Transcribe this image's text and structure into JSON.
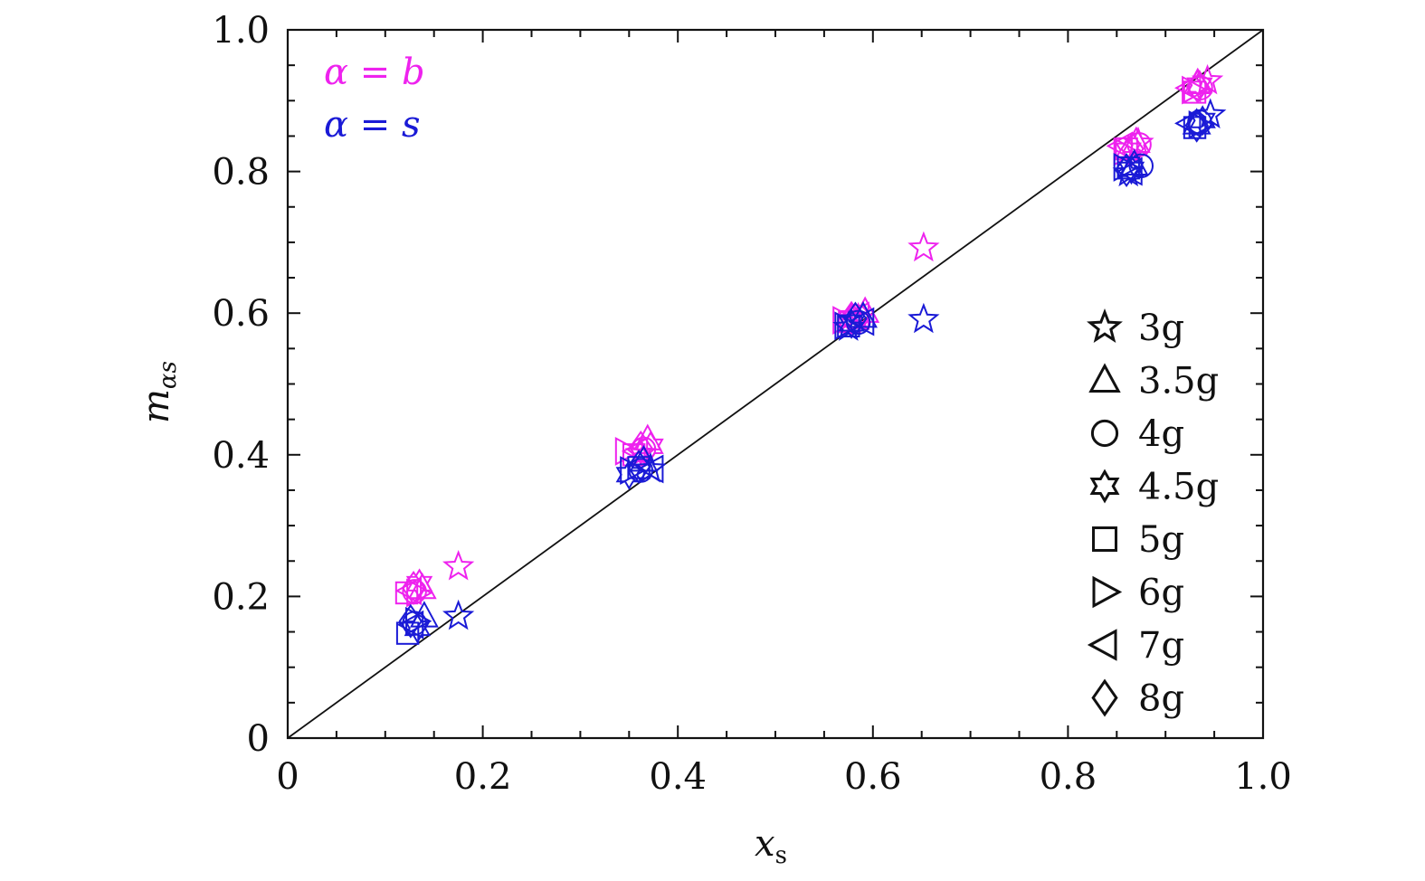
{
  "chart_data": {
    "type": "scatter",
    "xlabel": "x",
    "xlabel_sub": "s",
    "ylabel": "m",
    "ylabel_sub": "αs",
    "xlim": [
      0,
      1.0
    ],
    "ylim": [
      0,
      1.0
    ],
    "x_ticks": [
      "0",
      "0.2",
      "0.4",
      "0.6",
      "0.8",
      "1.0"
    ],
    "y_ticks": [
      "0",
      "0.2",
      "0.4",
      "0.6",
      "0.8",
      "1.0"
    ],
    "reference_line": {
      "from": [
        0,
        0
      ],
      "to": [
        1.0,
        1.0
      ]
    },
    "group_labels": [
      {
        "text": "α = b",
        "color": "#ee22ee"
      },
      {
        "text": "α = s",
        "color": "#1a1ad6"
      }
    ],
    "marker_legend": [
      {
        "marker": "star5",
        "label": "3g"
      },
      {
        "marker": "triangle-up",
        "label": "3.5g"
      },
      {
        "marker": "circle",
        "label": "4g"
      },
      {
        "marker": "star6",
        "label": "4.5g"
      },
      {
        "marker": "square",
        "label": "5g"
      },
      {
        "marker": "triangle-right",
        "label": "6g"
      },
      {
        "marker": "triangle-left",
        "label": "7g"
      },
      {
        "marker": "diamond",
        "label": "8g"
      }
    ],
    "legend_position": "lower-right",
    "colors": {
      "b": "#ee22ee",
      "s": "#1a1ad6"
    },
    "series": [
      {
        "marker": "star5",
        "group": "b",
        "points": [
          [
            0.175,
            0.242
          ],
          [
            0.362,
            0.402
          ],
          [
            0.585,
            0.592
          ],
          [
            0.652,
            0.692
          ],
          [
            0.872,
            0.84
          ],
          [
            0.943,
            0.928
          ]
        ]
      },
      {
        "marker": "triangle-up",
        "group": "b",
        "points": [
          [
            0.138,
            0.212
          ],
          [
            0.369,
            0.422
          ],
          [
            0.592,
            0.602
          ],
          [
            0.87,
            0.842
          ],
          [
            0.933,
            0.925
          ]
        ]
      },
      {
        "marker": "circle",
        "group": "b",
        "points": [
          [
            0.13,
            0.207
          ],
          [
            0.365,
            0.408
          ],
          [
            0.583,
            0.595
          ],
          [
            0.873,
            0.838
          ],
          [
            0.936,
            0.918
          ]
        ]
      },
      {
        "marker": "star6",
        "group": "b",
        "points": [
          [
            0.135,
            0.218
          ],
          [
            0.372,
            0.412
          ],
          [
            0.578,
            0.592
          ],
          [
            0.862,
            0.83
          ],
          [
            0.935,
            0.922
          ]
        ]
      },
      {
        "marker": "square",
        "group": "b",
        "points": [
          [
            0.122,
            0.205
          ],
          [
            0.355,
            0.4
          ],
          [
            0.576,
            0.588
          ],
          [
            0.86,
            0.832
          ],
          [
            0.93,
            0.912
          ]
        ]
      },
      {
        "marker": "triangle-right",
        "group": "b",
        "points": [
          [
            0.133,
            0.205
          ],
          [
            0.347,
            0.405
          ],
          [
            0.57,
            0.59
          ],
          [
            0.858,
            0.828
          ],
          [
            0.928,
            0.915
          ]
        ]
      },
      {
        "marker": "triangle-left",
        "group": "b",
        "points": [
          [
            0.126,
            0.208
          ],
          [
            0.358,
            0.405
          ],
          [
            0.585,
            0.596
          ],
          [
            0.855,
            0.836
          ],
          [
            0.925,
            0.918
          ]
        ]
      },
      {
        "marker": "diamond",
        "group": "b",
        "points": [
          [
            0.129,
            0.212
          ],
          [
            0.362,
            0.41
          ],
          [
            0.578,
            0.593
          ],
          [
            0.866,
            0.832
          ],
          [
            0.933,
            0.92
          ]
        ]
      },
      {
        "marker": "star5",
        "group": "s",
        "points": [
          [
            0.175,
            0.172
          ],
          [
            0.372,
            0.38
          ],
          [
            0.575,
            0.58
          ],
          [
            0.652,
            0.591
          ],
          [
            0.862,
            0.798
          ],
          [
            0.946,
            0.88
          ]
        ]
      },
      {
        "marker": "triangle-up",
        "group": "s",
        "points": [
          [
            0.14,
            0.172
          ],
          [
            0.365,
            0.392
          ],
          [
            0.59,
            0.595
          ],
          [
            0.868,
            0.81
          ],
          [
            0.932,
            0.868
          ]
        ]
      },
      {
        "marker": "circle",
        "group": "s",
        "points": [
          [
            0.13,
            0.162
          ],
          [
            0.362,
            0.378
          ],
          [
            0.585,
            0.587
          ],
          [
            0.875,
            0.808
          ],
          [
            0.935,
            0.87
          ]
        ]
      },
      {
        "marker": "star6",
        "group": "s",
        "points": [
          [
            0.133,
            0.155
          ],
          [
            0.35,
            0.372
          ],
          [
            0.578,
            0.585
          ],
          [
            0.865,
            0.803
          ],
          [
            0.938,
            0.872
          ]
        ]
      },
      {
        "marker": "square",
        "group": "s",
        "points": [
          [
            0.123,
            0.148
          ],
          [
            0.36,
            0.382
          ],
          [
            0.575,
            0.582
          ],
          [
            0.862,
            0.805
          ],
          [
            0.93,
            0.862
          ]
        ]
      },
      {
        "marker": "triangle-right",
        "group": "s",
        "points": [
          [
            0.132,
            0.165
          ],
          [
            0.352,
            0.378
          ],
          [
            0.572,
            0.582
          ],
          [
            0.858,
            0.806
          ],
          [
            0.935,
            0.866
          ]
        ]
      },
      {
        "marker": "triangle-left",
        "group": "s",
        "points": [
          [
            0.128,
            0.16
          ],
          [
            0.374,
            0.38
          ],
          [
            0.59,
            0.588
          ],
          [
            0.865,
            0.8
          ],
          [
            0.925,
            0.868
          ]
        ]
      },
      {
        "marker": "diamond",
        "group": "s",
        "points": [
          [
            0.126,
            0.165
          ],
          [
            0.36,
            0.383
          ],
          [
            0.582,
            0.592
          ],
          [
            0.86,
            0.802
          ],
          [
            0.932,
            0.865
          ]
        ]
      }
    ]
  }
}
